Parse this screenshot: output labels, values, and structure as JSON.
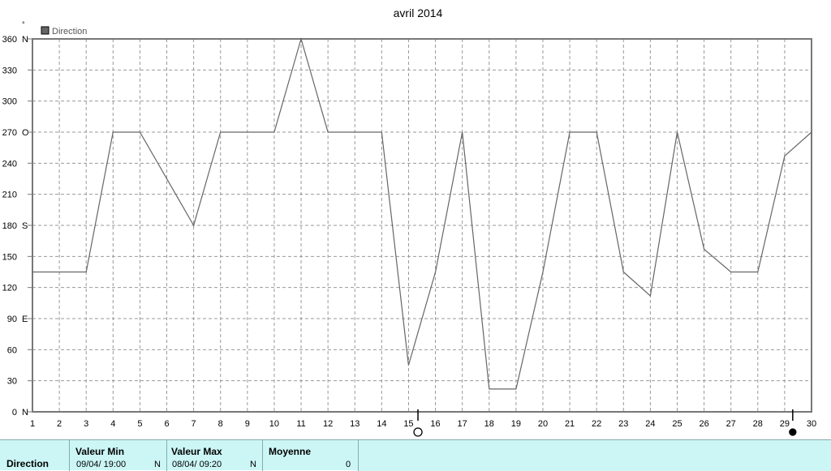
{
  "chart_data": {
    "type": "line",
    "title": "avril 2014",
    "ylabel": "°",
    "legend": {
      "label": "Direction",
      "color": "#666666",
      "placement": "top-left"
    },
    "x": [
      1,
      2,
      3,
      4,
      5,
      6,
      7,
      8,
      9,
      10,
      11,
      12,
      13,
      14,
      15,
      16,
      17,
      18,
      19,
      20,
      21,
      22,
      23,
      24,
      25,
      26,
      27,
      28,
      29,
      30
    ],
    "xlim": [
      1,
      30
    ],
    "ylim": [
      0,
      360
    ],
    "grid": true,
    "y_ticks": [
      {
        "value": 0,
        "label": "0",
        "suffix": "N"
      },
      {
        "value": 30,
        "label": "30",
        "suffix": ""
      },
      {
        "value": 60,
        "label": "60",
        "suffix": ""
      },
      {
        "value": 90,
        "label": "90",
        "suffix": "E"
      },
      {
        "value": 120,
        "label": "120",
        "suffix": ""
      },
      {
        "value": 150,
        "label": "150",
        "suffix": ""
      },
      {
        "value": 180,
        "label": "180",
        "suffix": "S"
      },
      {
        "value": 210,
        "label": "210",
        "suffix": ""
      },
      {
        "value": 240,
        "label": "240",
        "suffix": ""
      },
      {
        "value": 270,
        "label": "270",
        "suffix": "O"
      },
      {
        "value": 300,
        "label": "300",
        "suffix": ""
      },
      {
        "value": 330,
        "label": "330",
        "suffix": ""
      },
      {
        "value": 360,
        "label": "360",
        "suffix": "N"
      }
    ],
    "series": [
      {
        "name": "Direction",
        "color": "#666666",
        "points": [
          [
            1,
            135
          ],
          [
            3,
            135
          ],
          [
            4,
            270
          ],
          [
            5,
            270
          ],
          [
            7,
            180
          ],
          [
            8,
            270
          ],
          [
            10,
            270
          ],
          [
            11,
            360
          ],
          [
            12,
            270
          ],
          [
            14,
            270
          ],
          [
            15,
            45
          ],
          [
            16,
            135
          ],
          [
            17,
            270
          ],
          [
            18,
            22
          ],
          [
            19,
            22
          ],
          [
            20,
            135
          ],
          [
            21,
            270
          ],
          [
            22,
            270
          ],
          [
            23,
            135
          ],
          [
            24,
            112
          ],
          [
            25,
            270
          ],
          [
            26,
            157
          ],
          [
            27,
            135
          ],
          [
            28,
            135
          ],
          [
            29,
            247
          ],
          [
            30,
            270
          ]
        ]
      }
    ],
    "markers": [
      {
        "x": 15.35,
        "symbol": "new-moon-outline"
      },
      {
        "x": 29.3,
        "symbol": "full-moon-filled"
      }
    ]
  },
  "footer": {
    "row_label": "Direction",
    "min_header": "Valeur Min",
    "min_time": "09/04/  19:00",
    "min_dir": "N",
    "max_header": "Valeur Max",
    "max_time": "08/04/  09:20",
    "max_dir": "N",
    "avg_header": "Moyenne",
    "avg_value": "0"
  }
}
